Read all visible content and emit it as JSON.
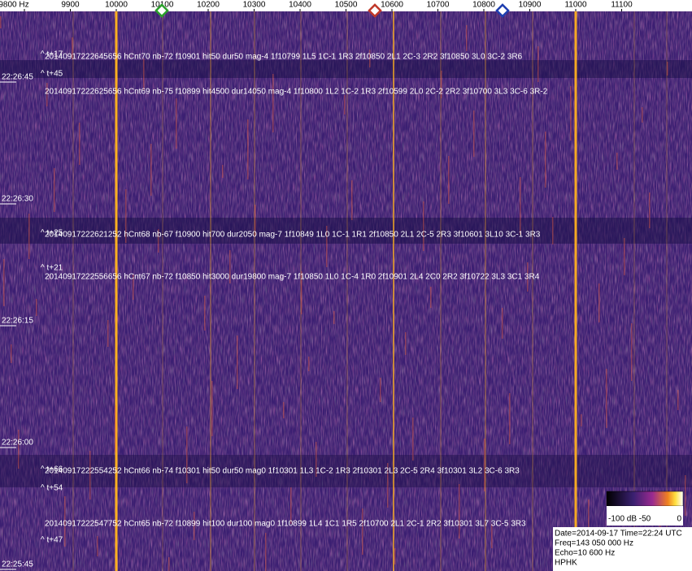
{
  "frequency_axis": {
    "labels": [
      "9800 Hz",
      "9900",
      "10000",
      "10100",
      "10200",
      "10300",
      "10400",
      "10500",
      "10600",
      "10700",
      "10800",
      "10900",
      "11000",
      "11100"
    ]
  },
  "time_axis": {
    "labels": [
      "22:26:45",
      "22:26:30",
      "22:26:15",
      "22:26:00",
      "22:25:45"
    ]
  },
  "markers": [
    "^ t+17",
    "^ t+45",
    "^ t+25",
    "^ t+21",
    "^ t+66",
    "^ t+54",
    "^ t+47"
  ],
  "detections": [
    "20140917222645656 hCnt70 nb-72 f10901 hit50 dur50 mag-4 1f10799 1L5 1C-1 1R3 2f10850 2L1 2C-3 2R2 3f10850 3L0 3C-2 3R6",
    "20140917222625656 hCnt69 nb-75 f10899 hit4500 dur14050 mag-4 1f10800 1L2 1C-2 1R3 2f10599 2L0 2C-2 2R2 3f10700 3L3 3C-6 3R-2",
    "20140917222621252 hCnt68 nb-67 f10900 hit700 dur2050 mag-7 1f10849 1L0 1C-1 1R1 2f10850 2L1 2C-5 2R3 3f10601 3L10 3C-1 3R3",
    "20140917222556656 hCnt67 nb-72 f10850 hit3000 dur19800 mag-7 1f10850 1L0 1C-4 1R0 2f10901 2L4 2C0 2R2 3f10722 3L3 3C1 3R4",
    "20140917222554252 hCnt66 nb-74 f10301 hit50 dur50 mag0 1f10301 1L3 1C-2 1R3 2f10301 2L3 2C-5 2R4 3f10301 3L2 3C-6 3R3",
    "20140917222547752 hCnt65 nb-72 f10899 hit100 dur100 mag0 1f10899 1L4 1C1 1R5 2f10700 2L1 2C-1 2R2 3f10301 3L7 3C-5 3R3"
  ],
  "color_scale": {
    "labels": [
      "-100 dB",
      "-50",
      "0"
    ]
  },
  "info": {
    "lines": [
      "Date=2014-09-17 Time=22:24 UTC",
      "Freq=143 050 000 Hz",
      "Echo=10 600 Hz",
      "HPHK"
    ]
  }
}
